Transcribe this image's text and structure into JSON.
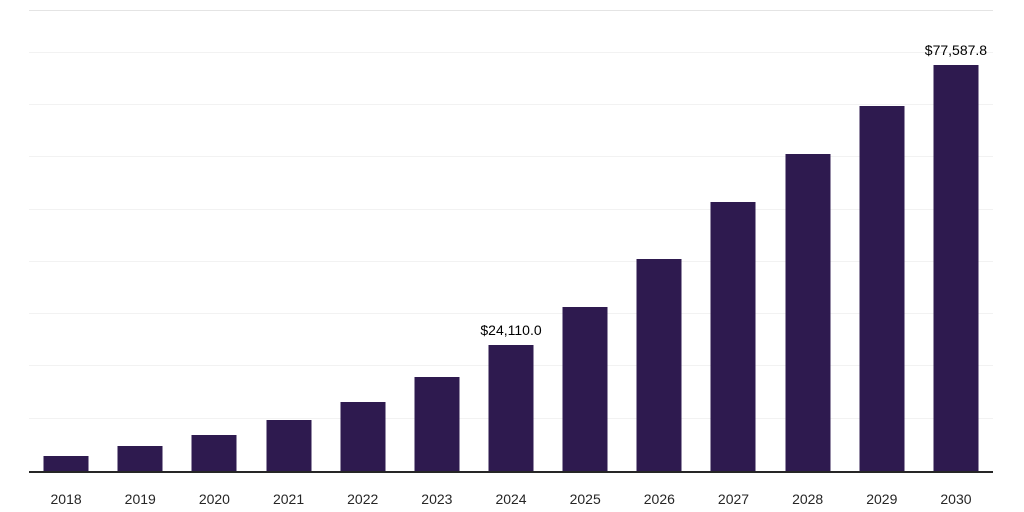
{
  "chart_data": {
    "type": "bar",
    "title": "",
    "xlabel": "",
    "ylabel": "",
    "categories": [
      "2018",
      "2019",
      "2020",
      "2021",
      "2022",
      "2023",
      "2024",
      "2025",
      "2026",
      "2027",
      "2028",
      "2029",
      "2030"
    ],
    "values": [
      2900,
      4800,
      6900,
      9800,
      13200,
      17900,
      24110.0,
      31400,
      40600,
      51500,
      60700,
      69800,
      77587.8
    ],
    "data_labels": {
      "2024": "$24,110.0",
      "2030": "$77,587.8"
    },
    "ylim": [
      0,
      88000
    ],
    "gridline_step": 10000,
    "grid": true,
    "legend": false,
    "bar_color": "#2e1a4f",
    "axis_color": "#262626",
    "gridline_color": "#f2f2f2"
  }
}
